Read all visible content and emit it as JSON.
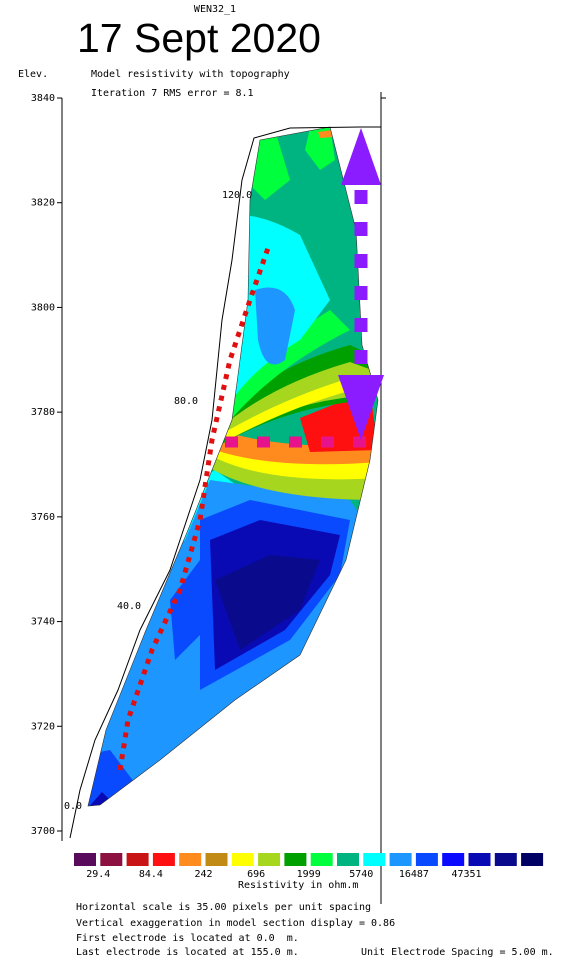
{
  "header": {
    "small_title": "WEN32_1",
    "date_title": "17 Sept 2020",
    "y_axis_label": "Elev.",
    "model_title": "Model resistivity with topography",
    "iteration_title": "Iteration 7 RMS error = 8.1"
  },
  "chart_data": {
    "type": "heatmap",
    "title": "Model resistivity with topography",
    "ylabel": "Elev.",
    "ylim": [
      3697,
      3843
    ],
    "y_ticks": [
      3700,
      3720,
      3740,
      3760,
      3780,
      3800,
      3820,
      3840
    ],
    "y_tick_labels": [
      "3700",
      "3720",
      "3740",
      "3760",
      "3780",
      "3800",
      "3820",
      "3840"
    ],
    "surface_distance_labels": [
      "0.0",
      "40.0",
      "80.0",
      "120.0"
    ],
    "color_scale": {
      "title": "Resistivity in ohm.m",
      "colors": [
        "#5a0a5a",
        "#8c1040",
        "#c81414",
        "#ff1010",
        "#ff8a1e",
        "#c08a14",
        "#ffff00",
        "#a6d61e",
        "#00a000",
        "#00ff3c",
        "#00b482",
        "#00ffff",
        "#1e96ff",
        "#0a4aff",
        "#0a0aff",
        "#0a0ab4",
        "#0a0a8c",
        "#000064"
      ],
      "tick_labels": [
        "29.4",
        "84.4",
        "242",
        "696",
        "1999",
        "5740",
        "16487",
        "47351"
      ]
    }
  },
  "footer": {
    "line1": "Horizontal scale is 35.00 pixels per unit spacing",
    "line2": "Vertical exaggeration in model section display = 0.86",
    "line3": "First electrode is located at 0.0  m.",
    "line4": "Last electrode is located at 155.0 m.",
    "line4_right": "Unit Electrode Spacing = 5.00 m."
  }
}
